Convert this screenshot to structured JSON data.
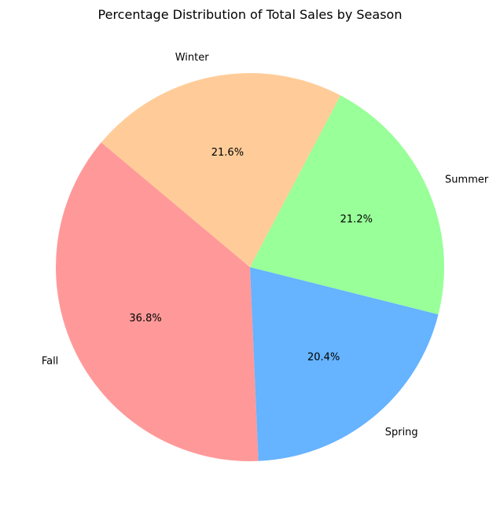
{
  "chart_data": {
    "type": "pie",
    "title": "Percentage Distribution of Total Sales by Season",
    "legend": "none",
    "slices": [
      {
        "label": "Fall",
        "value": 36.8,
        "pct_label": "36.8%",
        "color": "#ff9999"
      },
      {
        "label": "Spring",
        "value": 20.4,
        "pct_label": "20.4%",
        "color": "#66b3ff"
      },
      {
        "label": "Summer",
        "value": 21.2,
        "pct_label": "21.2%",
        "color": "#99ff99"
      },
      {
        "label": "Winter",
        "value": 21.6,
        "pct_label": "21.6%",
        "color": "#ffcc99"
      }
    ]
  }
}
